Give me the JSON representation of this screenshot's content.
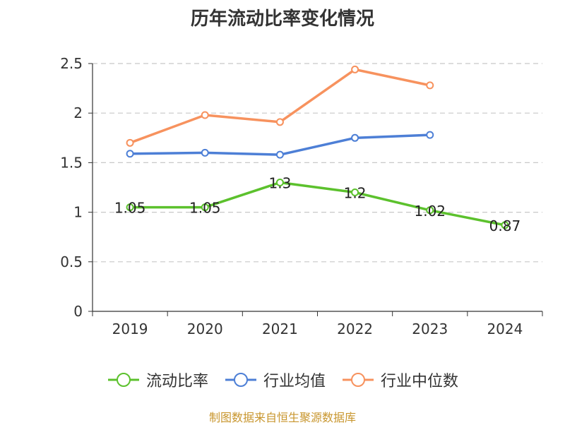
{
  "chart_data": {
    "type": "line",
    "title": "历年流动比率变化情况",
    "categories": [
      "2019",
      "2020",
      "2021",
      "2022",
      "2023",
      "2024"
    ],
    "ylim": [
      0,
      2.5
    ],
    "yticks": [
      "0",
      "0.5",
      "1",
      "1.5",
      "2",
      "2.5"
    ],
    "grid": true,
    "legend_position": "bottom",
    "series": [
      {
        "name": "流动比率",
        "color": "#5cc12d",
        "values": [
          1.05,
          1.05,
          1.3,
          1.2,
          1.02,
          0.87
        ],
        "labels": [
          "1.05",
          "1.05",
          "1.3",
          "1.2",
          "1.02",
          "0.87"
        ]
      },
      {
        "name": "行业均值",
        "color": "#4d7fd6",
        "values": [
          1.59,
          1.6,
          1.58,
          1.75,
          1.78,
          null
        ]
      },
      {
        "name": "行业中位数",
        "color": "#f7925e",
        "values": [
          1.7,
          1.98,
          1.91,
          2.44,
          2.28,
          null
        ]
      }
    ]
  },
  "source": "制图数据来自恒生聚源数据库"
}
